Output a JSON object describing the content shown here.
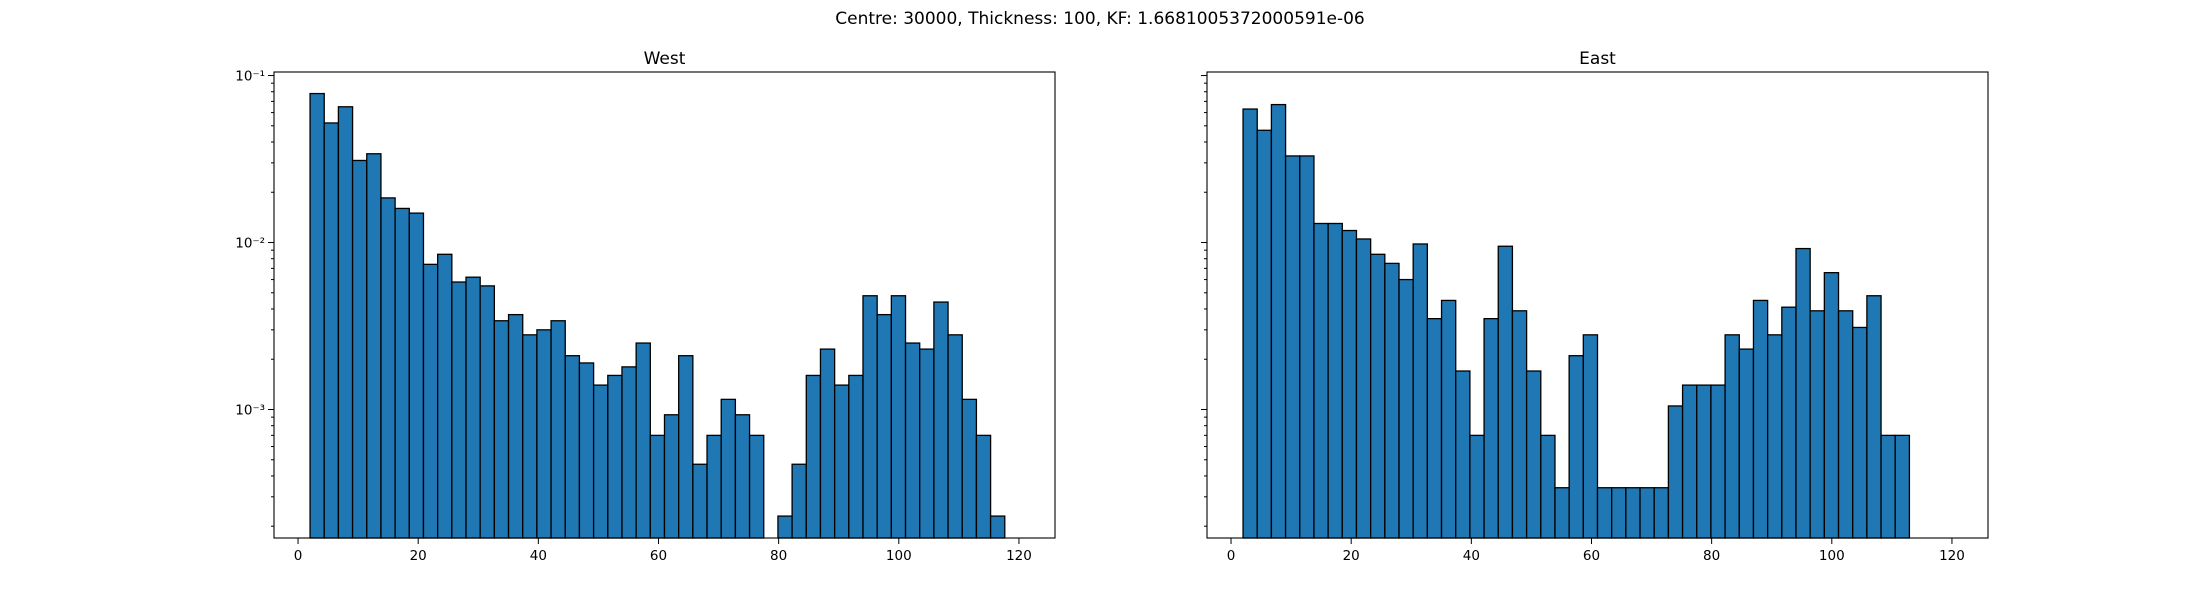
{
  "figure": {
    "suptitle": "Centre: 30000, Thickness: 100, KF: 1.6681005372000591e-06"
  },
  "chart_data": [
    {
      "type": "bar",
      "title": "West",
      "xlabel": "",
      "ylabel": "",
      "yscale": "log",
      "xlim": [
        -4,
        126
      ],
      "ylim": [
        0.00017,
        0.105
      ],
      "x_ticks": [
        0,
        20,
        40,
        60,
        80,
        100,
        120
      ],
      "x_tick_labels": [
        "0",
        "20",
        "40",
        "60",
        "80",
        "100",
        "120"
      ],
      "y_ticks": [
        0.1,
        0.01,
        0.001
      ],
      "y_tick_labels": [
        "10⁻¹",
        "10⁻²",
        "10⁻³"
      ],
      "show_y_tick_labels": true,
      "bar_color": "#1f77b4",
      "edge_color": "#000000",
      "bin_start": 2,
      "bin_width": 2.36,
      "values": [
        0.078,
        0.052,
        0.065,
        0.031,
        0.034,
        0.0185,
        0.016,
        0.015,
        0.0074,
        0.0085,
        0.0058,
        0.0062,
        0.0055,
        0.0034,
        0.0037,
        0.0028,
        0.003,
        0.0034,
        0.0021,
        0.0019,
        0.0014,
        0.0016,
        0.0018,
        0.0025,
        0.0007,
        0.00093,
        0.0021,
        0.00047,
        0.0007,
        0.00115,
        0.00093,
        0.0007,
        0,
        0.00023,
        0.00047,
        0.0016,
        0.0023,
        0.0014,
        0.0016,
        0.0048,
        0.0037,
        0.0048,
        0.0025,
        0.0023,
        0.0044,
        0.0028,
        0.00115,
        0.0007,
        0.00023
      ]
    },
    {
      "type": "bar",
      "title": "East",
      "xlabel": "",
      "ylabel": "",
      "yscale": "log",
      "xlim": [
        -4,
        126
      ],
      "ylim": [
        0.00017,
        0.105
      ],
      "x_ticks": [
        0,
        20,
        40,
        60,
        80,
        100,
        120
      ],
      "x_tick_labels": [
        "0",
        "20",
        "40",
        "60",
        "80",
        "100",
        "120"
      ],
      "y_ticks": [
        0.1,
        0.01,
        0.001
      ],
      "y_tick_labels": [
        "",
        "",
        ""
      ],
      "show_y_tick_labels": false,
      "bar_color": "#1f77b4",
      "edge_color": "#000000",
      "bin_start": 2,
      "bin_width": 2.36,
      "values": [
        0.063,
        0.047,
        0.067,
        0.033,
        0.033,
        0.013,
        0.013,
        0.0118,
        0.0105,
        0.0085,
        0.0075,
        0.006,
        0.0098,
        0.0035,
        0.0045,
        0.0017,
        0.0007,
        0.0035,
        0.0095,
        0.0039,
        0.0017,
        0.0007,
        0.00034,
        0.0021,
        0.0028,
        0.00034,
        0.00034,
        0.00034,
        0.00034,
        0.00034,
        0.00105,
        0.0014,
        0.0014,
        0.0014,
        0.0028,
        0.0023,
        0.0045,
        0.0028,
        0.0041,
        0.0092,
        0.0039,
        0.0066,
        0.0039,
        0.0031,
        0.0048,
        0.0007,
        0.0007
      ]
    }
  ]
}
